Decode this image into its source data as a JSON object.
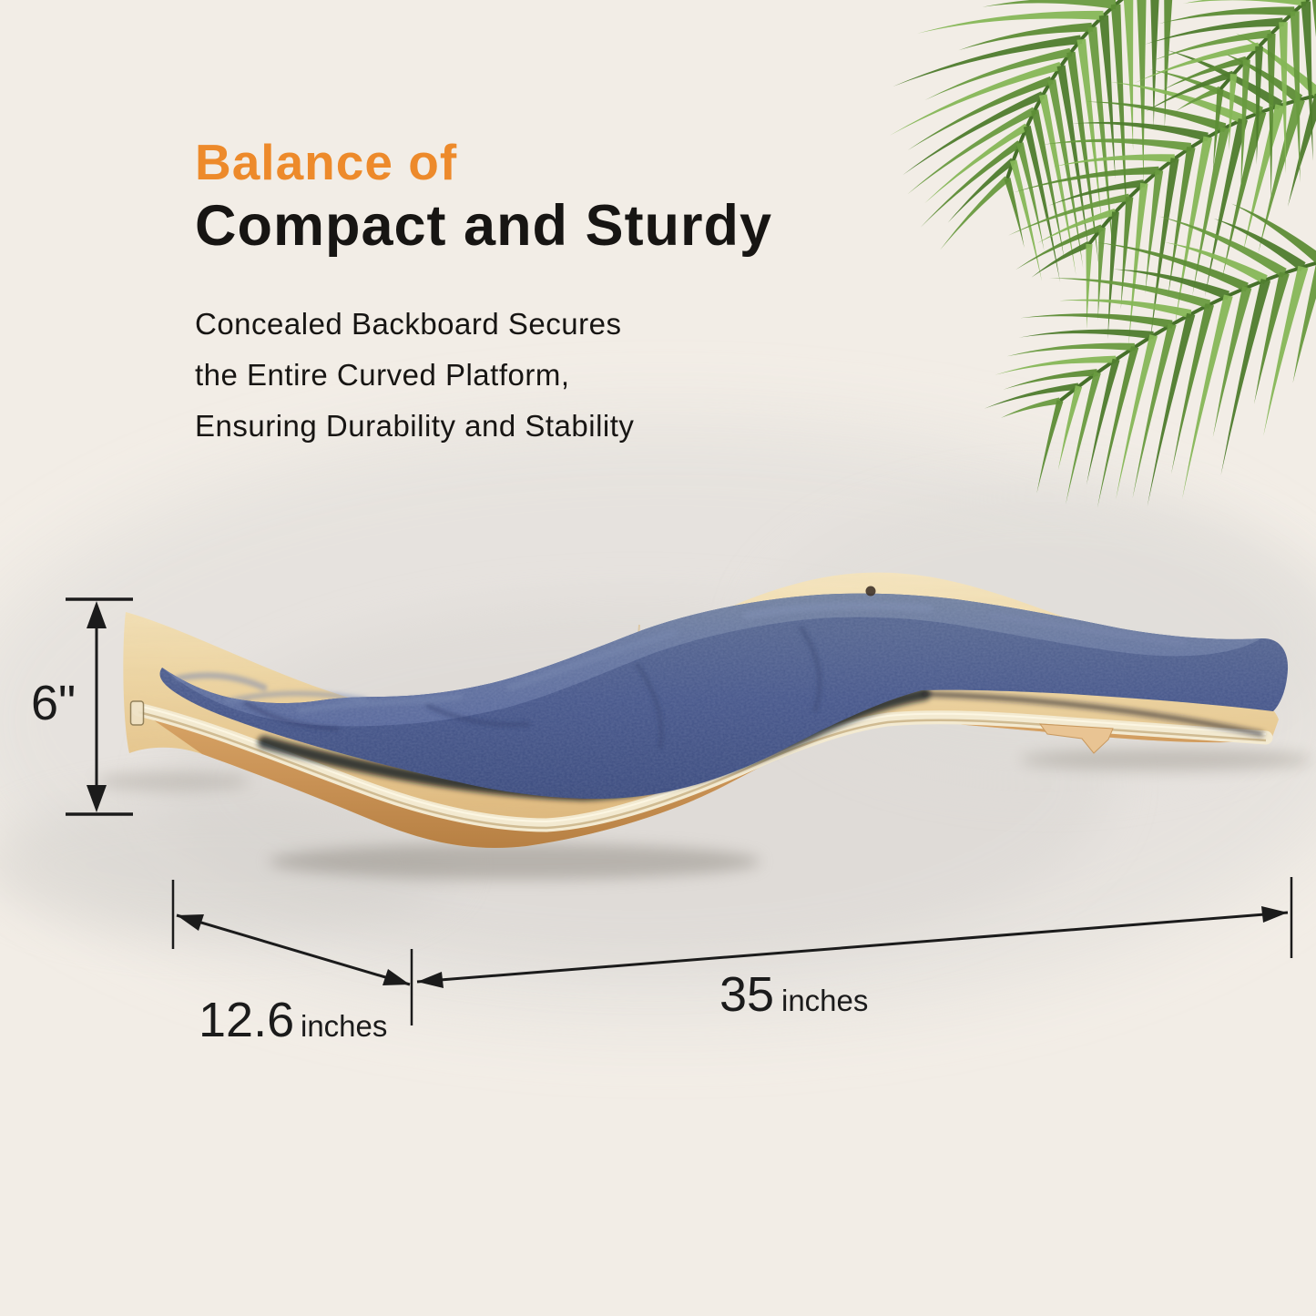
{
  "heading": {
    "accent": "Balance of",
    "main": "Compact and Sturdy"
  },
  "description": {
    "line1": "Concealed Backboard Secures",
    "line2": "the Entire Curved Platform,",
    "line3": "Ensuring Durability and Stability"
  },
  "dimensions": {
    "height_label": "6\"",
    "depth_value": "12.6",
    "depth_unit": "inches",
    "length_value": "35",
    "length_unit": "inches"
  },
  "theme": {
    "background": "#F2EDE6",
    "accent_orange": "#ED8A2B",
    "text_black": "#171513",
    "dimension_color": "#1B1B1B",
    "photo_backdrop": "#E4E1DD",
    "wood_light": "#F6E7C2",
    "wood_mid": "#EED7A6",
    "wood_dark": "#D9B074",
    "wood_underside": "#C99255",
    "plywood_edge": "#F3EAD1",
    "cushion_top": "#6F7EA6",
    "cushion_front": "#46568A",
    "cushion_shadow": "#12151F",
    "palm_green_dark": "#4E7C2D",
    "palm_green_mid": "#699B40",
    "palm_green_light": "#86B757"
  }
}
